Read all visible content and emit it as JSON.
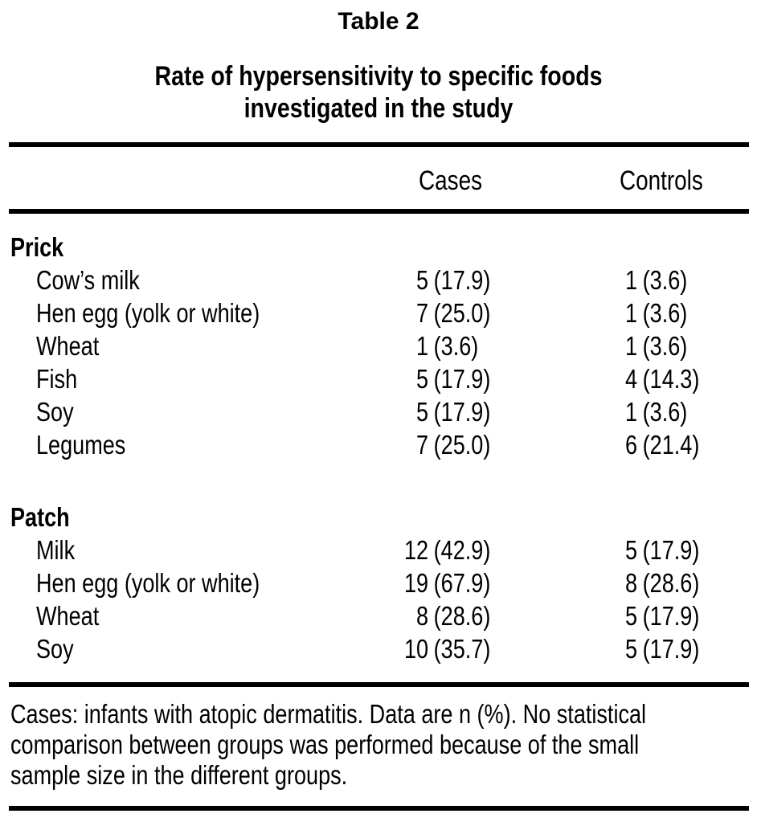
{
  "page": {
    "background_color": "#ffffff",
    "text_color": "#000000"
  },
  "table": {
    "label": "Table 2",
    "title": "Rate of hypersensitivity to specific foods investigated in the study",
    "title_lines": [
      "Rate of hypersensitivity to specific foods",
      "investigated in the study"
    ],
    "columns": [
      "Cases",
      "Controls"
    ],
    "sections": [
      {
        "name": "Prick",
        "rows": [
          {
            "food": "Cow’s milk",
            "cases": {
              "n": "5",
              "pct": "(17.9)"
            },
            "controls": {
              "n": "1",
              "pct": "(3.6)"
            }
          },
          {
            "food": "Hen egg (yolk or white)",
            "cases": {
              "n": "7",
              "pct": "(25.0)"
            },
            "controls": {
              "n": "1",
              "pct": "(3.6)"
            }
          },
          {
            "food": "Wheat",
            "cases": {
              "n": "1",
              "pct": "(3.6)"
            },
            "controls": {
              "n": "1",
              "pct": "(3.6)"
            }
          },
          {
            "food": "Fish",
            "cases": {
              "n": "5",
              "pct": "(17.9)"
            },
            "controls": {
              "n": "4",
              "pct": "(14.3)"
            }
          },
          {
            "food": "Soy",
            "cases": {
              "n": "5",
              "pct": "(17.9)"
            },
            "controls": {
              "n": "1",
              "pct": "(3.6)"
            }
          },
          {
            "food": "Legumes",
            "cases": {
              "n": "7",
              "pct": "(25.0)"
            },
            "controls": {
              "n": "6",
              "pct": "(21.4)"
            }
          }
        ]
      },
      {
        "name": "Patch",
        "rows": [
          {
            "food": "Milk",
            "cases": {
              "n": "12",
              "pct": "(42.9)"
            },
            "controls": {
              "n": "5",
              "pct": "(17.9)"
            }
          },
          {
            "food": "Hen egg (yolk or white)",
            "cases": {
              "n": "19",
              "pct": "(67.9)"
            },
            "controls": {
              "n": "8",
              "pct": "(28.6)"
            }
          },
          {
            "food": "Wheat",
            "cases": {
              "n": "8",
              "pct": "(28.6)"
            },
            "controls": {
              "n": "5",
              "pct": "(17.9)"
            }
          },
          {
            "food": "Soy",
            "cases": {
              "n": "10",
              "pct": "(35.7)"
            },
            "controls": {
              "n": "5",
              "pct": "(17.9)"
            }
          }
        ]
      }
    ],
    "footnote": "Cases: infants with atopic dermatitis. Data are n (%). No statistical comparison between groups was performed because of the small sample size in the different groups.",
    "footnote_lines": [
      "Cases: infants with atopic dermatitis. Data are n (%). No statistical",
      "comparison between groups was performed because of the small",
      "sample size in the different groups."
    ]
  }
}
